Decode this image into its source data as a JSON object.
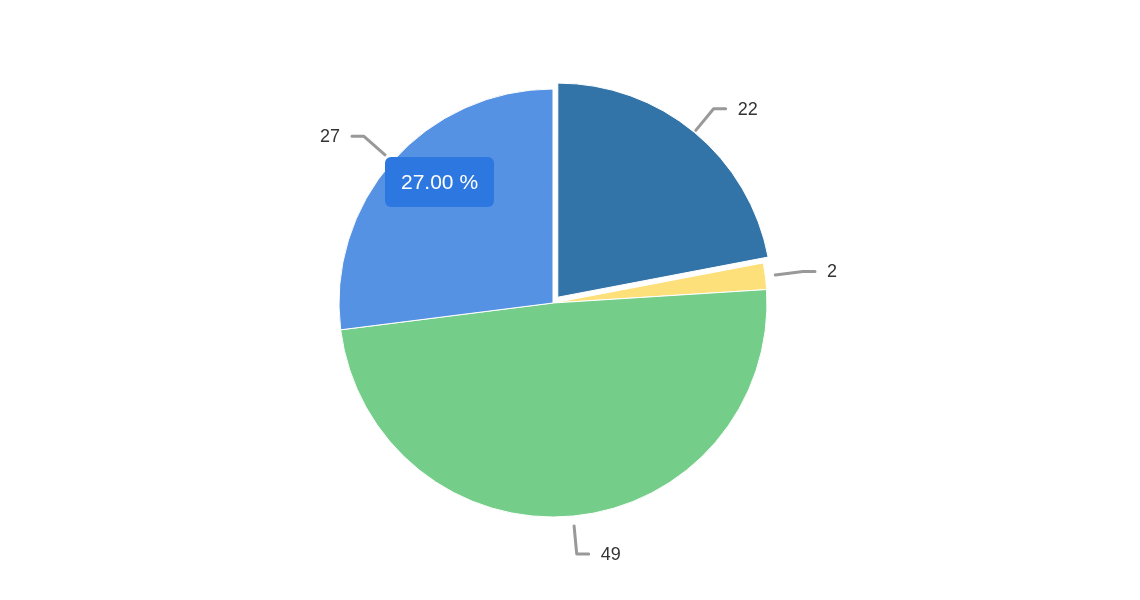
{
  "chart_data": {
    "type": "pie",
    "categories": [
      null,
      null,
      null,
      null
    ],
    "values": [
      22,
      2,
      49,
      27
    ],
    "colors": [
      "#3374a8",
      "#fde07a",
      "#74cd88",
      "#5692e4"
    ],
    "data_labels": true,
    "annotations": [
      "27.00 %"
    ]
  }
}
